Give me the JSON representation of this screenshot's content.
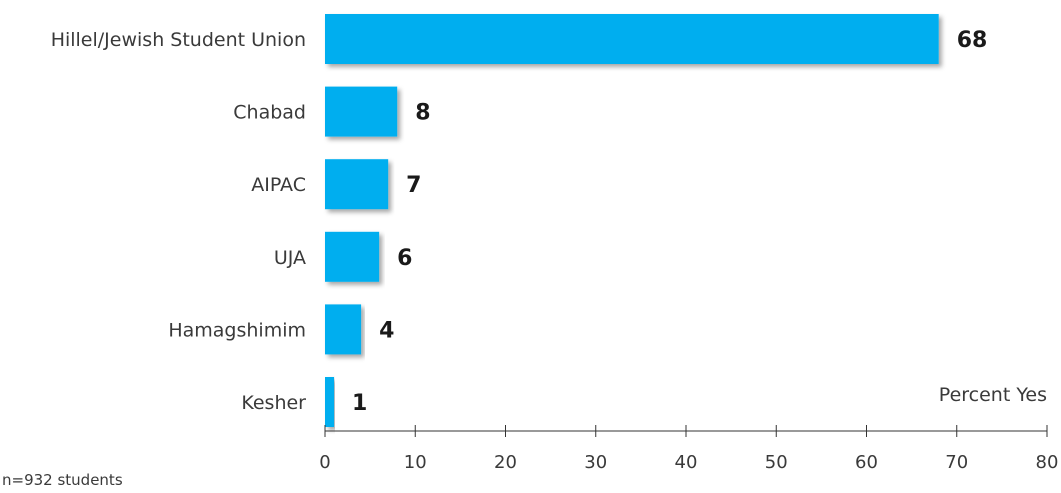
{
  "chart_data": {
    "type": "bar",
    "orientation": "horizontal",
    "categories": [
      "Hillel/Jewish Student Union",
      "Chabad",
      "AIPAC",
      "UJA",
      "Hamagshimim",
      "Kesher"
    ],
    "values": [
      68,
      8,
      7,
      6,
      4,
      1
    ],
    "xlabel": "Percent Yes",
    "xlim": [
      0,
      80
    ],
    "xticks": [
      0,
      10,
      20,
      30,
      40,
      50,
      60,
      70,
      80
    ],
    "grid": false,
    "legend": "none",
    "bar_color": "#00aeef",
    "note": "n=932 students"
  }
}
